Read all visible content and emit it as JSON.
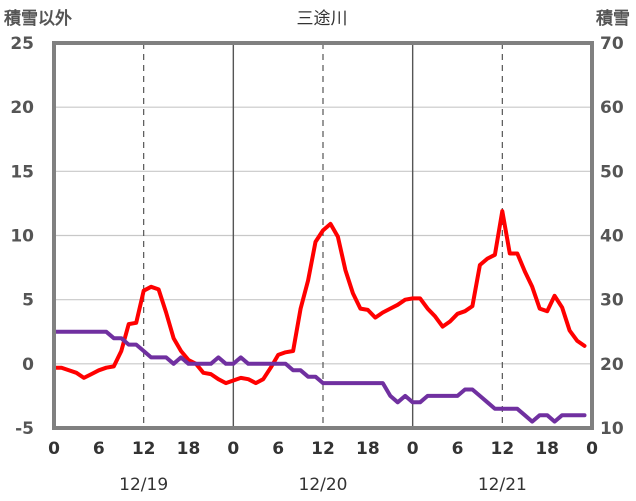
{
  "chart_data": {
    "type": "line",
    "title": "三途川",
    "ylabel_left": "積雪以外",
    "ylabel_right": "積雪",
    "ylim_left": [
      -5,
      25
    ],
    "ylim_right": [
      10,
      70
    ],
    "yticks_left": [
      "25",
      "20",
      "15",
      "10",
      "5",
      "0",
      "-5"
    ],
    "yticks_right": [
      "70",
      "60",
      "50",
      "40",
      "30",
      "20",
      "10"
    ],
    "xlim": [
      0,
      72
    ],
    "xticks": [
      "0",
      "6",
      "12",
      "18",
      "0",
      "6",
      "12",
      "18",
      "0",
      "6",
      "12",
      "18",
      "0"
    ],
    "dates": [
      "12/19",
      "12/20",
      "12/21"
    ],
    "series": [
      {
        "color": "#ff0000",
        "axis": "left",
        "x": [
          0,
          1,
          2,
          3,
          4,
          5,
          6,
          7,
          8,
          9,
          10,
          11,
          12,
          13,
          14,
          15,
          16,
          17,
          18,
          19,
          20,
          21,
          22,
          23,
          24,
          25,
          26,
          27,
          28,
          29,
          30,
          31,
          32,
          33,
          34,
          35,
          36,
          37,
          38,
          39,
          40,
          41,
          42,
          43,
          44,
          45,
          46,
          47,
          48,
          49,
          50,
          51,
          52,
          53,
          54,
          55,
          56,
          57,
          58,
          59,
          60,
          61,
          62,
          63,
          64,
          65,
          66,
          67,
          68,
          69,
          70,
          71
        ],
        "values": [
          -0.3,
          -0.3,
          -0.5,
          -0.7,
          -1.1,
          -0.8,
          -0.5,
          -0.3,
          -0.2,
          1.0,
          3.1,
          3.2,
          5.7,
          6.0,
          5.8,
          4.0,
          2.0,
          1.0,
          0.3,
          0.0,
          -0.7,
          -0.8,
          -1.2,
          -1.5,
          -1.3,
          -1.1,
          -1.2,
          -1.5,
          -1.2,
          -0.3,
          0.7,
          0.9,
          1.0,
          4.3,
          6.5,
          9.5,
          10.4,
          10.9,
          9.9,
          7.3,
          5.5,
          4.3,
          4.2,
          3.6,
          4.0,
          4.3,
          4.6,
          5.0,
          5.1,
          5.1,
          4.3,
          3.7,
          2.9,
          3.3,
          3.9,
          4.1,
          4.5,
          7.7,
          8.2,
          8.5,
          11.9,
          8.6,
          8.6,
          7.2,
          6.0,
          4.3,
          4.1,
          5.3,
          4.4,
          2.6,
          1.8,
          1.4
        ]
      },
      {
        "color": "#7030a0",
        "axis": "right",
        "x": [
          0,
          1,
          2,
          3,
          4,
          5,
          6,
          7,
          8,
          9,
          10,
          11,
          12,
          13,
          14,
          15,
          16,
          17,
          18,
          19,
          20,
          21,
          22,
          23,
          24,
          25,
          26,
          27,
          28,
          29,
          30,
          31,
          32,
          33,
          34,
          35,
          36,
          37,
          38,
          39,
          40,
          41,
          42,
          43,
          44,
          45,
          46,
          47,
          48,
          49,
          50,
          51,
          52,
          53,
          54,
          55,
          56,
          57,
          58,
          59,
          60,
          61,
          62,
          63,
          64,
          65,
          66,
          67,
          68,
          69,
          70,
          71
        ],
        "values": [
          25,
          25,
          25,
          25,
          25,
          25,
          25,
          25,
          24,
          24,
          23,
          23,
          22,
          21,
          21,
          21,
          20,
          21,
          20,
          20,
          20,
          20,
          21,
          20,
          20,
          21,
          20,
          20,
          20,
          20,
          20,
          20,
          19,
          19,
          18,
          18,
          17,
          17,
          17,
          17,
          17,
          17,
          17,
          17,
          17,
          15,
          14,
          15,
          14,
          14,
          15,
          15,
          15,
          15,
          15,
          16,
          16,
          15,
          14,
          13,
          13,
          13,
          13,
          12,
          11,
          12,
          12,
          11,
          12,
          12,
          12,
          12
        ]
      }
    ],
    "grid": true
  }
}
